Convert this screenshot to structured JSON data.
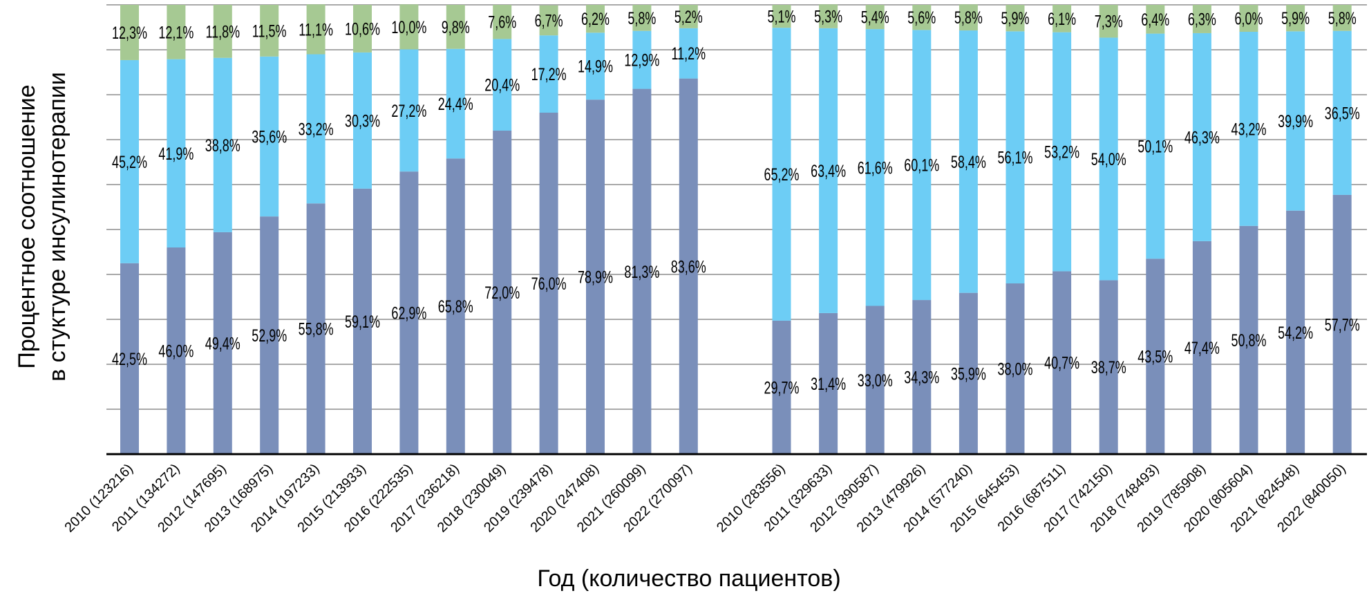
{
  "chart_data": {
    "type": "bar",
    "stacked": true,
    "percent_stacked": true,
    "title": "",
    "xlabel": "Год (количество пациентов)",
    "ylabel": [
      "Процентное соотношение",
      "в стуктуре инсулинотерапии"
    ],
    "ylim": [
      0,
      100
    ],
    "grid": true,
    "legend": "none",
    "colors": [
      "#7a8fba",
      "#6dcdf5",
      "#a6c993"
    ],
    "groups": [
      {
        "categories": [
          "2010 (123216)",
          "2011 (134272)",
          "2012 (147695)",
          "2013 (168975)",
          "2014 (197233)",
          "2015 (213933)",
          "2016 (222535)",
          "2017 (236218)",
          "2018 (230049)",
          "2019 (239478)",
          "2020 (247408)",
          "2021 (260099)",
          "2022 (270097)"
        ],
        "series": [
          {
            "values": [
              42.5,
              46.0,
              49.4,
              52.9,
              55.8,
              59.1,
              62.9,
              65.8,
              72.0,
              76.0,
              78.9,
              81.3,
              83.6
            ],
            "labels": [
              "42,5%",
              "46,0%",
              "49,4%",
              "52,9%",
              "55,8%",
              "59,1%",
              "62,9%",
              "65,8%",
              "72,0%",
              "76,0%",
              "78,9%",
              "81,3%",
              "83,6%"
            ]
          },
          {
            "values": [
              45.2,
              41.9,
              38.8,
              35.6,
              33.2,
              30.3,
              27.2,
              24.4,
              20.4,
              17.2,
              14.9,
              12.9,
              11.2
            ],
            "labels": [
              "45,2%",
              "41,9%",
              "38,8%",
              "35,6%",
              "33,2%",
              "30,3%",
              "27,2%",
              "24,4%",
              "20,4%",
              "17,2%",
              "14,9%",
              "12,9%",
              "11,2%"
            ]
          },
          {
            "values": [
              12.3,
              12.1,
              11.8,
              11.5,
              11.1,
              10.6,
              10.0,
              9.8,
              7.6,
              6.7,
              6.2,
              5.8,
              5.2
            ],
            "labels": [
              "12,3%",
              "12,1%",
              "11,8%",
              "11,5%",
              "11,1%",
              "10,6%",
              "10,0%",
              "9,8%",
              "7,6%",
              "6,7%",
              "6,2%",
              "5,8%",
              "5,2%"
            ]
          }
        ]
      },
      {
        "categories": [
          "2010 (283556)",
          "2011 (329633)",
          "2012 (390587)",
          "2013 (479926)",
          "2014 (577240)",
          "2015 (645453)",
          "2016 (687511)",
          "2017 (742150)",
          "2018 (748493)",
          "2019 (785908)",
          "2020 (805604)",
          "2021 (824548)",
          "2022 (840050)"
        ],
        "series": [
          {
            "values": [
              29.7,
              31.4,
              33.0,
              34.3,
              35.9,
              38.0,
              40.7,
              38.7,
              43.5,
              47.4,
              50.8,
              54.2,
              57.7
            ],
            "labels": [
              "29,7%",
              "31,4%",
              "33,0%",
              "34,3%",
              "35,9%",
              "38,0%",
              "40,7%",
              "38,7%",
              "43,5%",
              "47,4%",
              "50,8%",
              "54,2%",
              "57,7%"
            ]
          },
          {
            "values": [
              65.2,
              63.4,
              61.6,
              60.1,
              58.4,
              56.1,
              53.2,
              54.0,
              50.1,
              46.3,
              43.2,
              39.9,
              36.5
            ],
            "labels": [
              "65,2%",
              "63,4%",
              "61,6%",
              "60,1%",
              "58,4%",
              "56,1%",
              "53,2%",
              "54,0%",
              "50,1%",
              "46,3%",
              "43,2%",
              "39,9%",
              "36,5%"
            ]
          },
          {
            "values": [
              5.1,
              5.3,
              5.4,
              5.6,
              5.8,
              5.9,
              6.1,
              7.3,
              6.4,
              6.3,
              6.0,
              5.9,
              5.8
            ],
            "labels": [
              "5,1%",
              "5,3%",
              "5,4%",
              "5,6%",
              "5,8%",
              "5,9%",
              "6,1%",
              "7,3%",
              "6,4%",
              "6,3%",
              "6,0%",
              "5,9%",
              "5,8%"
            ]
          }
        ]
      }
    ]
  }
}
